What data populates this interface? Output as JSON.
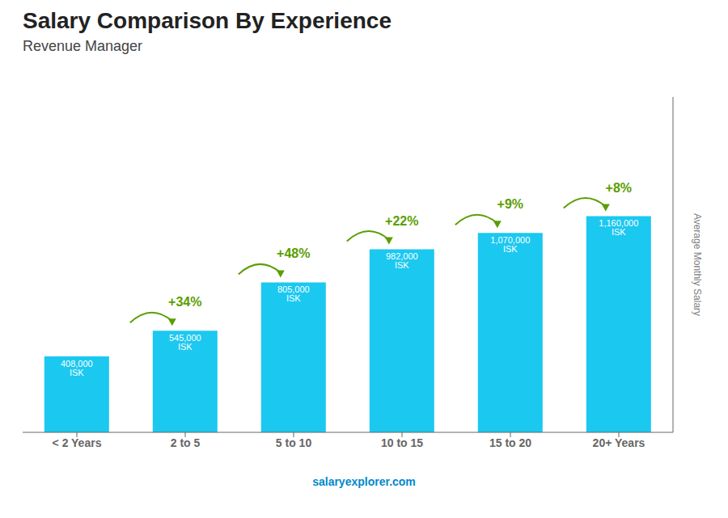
{
  "chart_data": {
    "type": "bar",
    "title": "Salary Comparison By Experience",
    "subtitle": "Revenue Manager",
    "ylabel": "Average Monthly Salary",
    "categories": [
      "< 2 Years",
      "2 to 5",
      "5 to 10",
      "10 to 15",
      "15 to 20",
      "20+ Years"
    ],
    "values": [
      408000,
      545000,
      805000,
      982000,
      1070000,
      1160000
    ],
    "value_labels": [
      "408,000 ISK",
      "545,000 ISK",
      "805,000 ISK",
      "982,000 ISK",
      "1,070,000 ISK",
      "1,160,000 ISK"
    ],
    "data_labels": true,
    "change_labels": [
      null,
      "+34%",
      "+48%",
      "+22%",
      "+9%",
      "+8%"
    ],
    "color": "#1bc8f0",
    "ylim": [
      0,
      1800000
    ],
    "tick_labels": "x",
    "grid": false,
    "annotations": [
      "salaryexplorer.com"
    ]
  }
}
